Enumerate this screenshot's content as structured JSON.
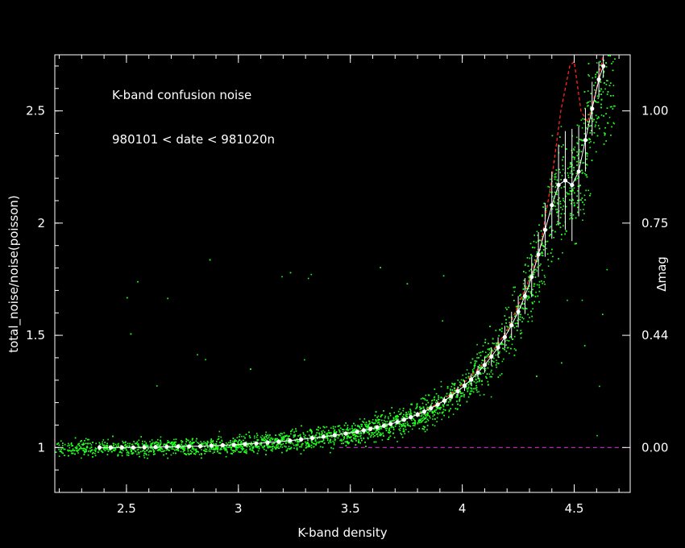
{
  "chart_data": {
    "type": "scatter",
    "title": "K-band confusion noise",
    "subtitle": "980101 < date < 981020n",
    "xlabel": "K-band density",
    "ylabel": "total_noise/noise(poisson)",
    "y2label": "Δmag",
    "xlim": [
      2.18,
      4.75
    ],
    "ylim": [
      0.8,
      2.75
    ],
    "x_ticks": [
      "2.5",
      "3",
      "3.5",
      "4",
      "4.5"
    ],
    "x_tick_values": [
      2.5,
      3.0,
      3.5,
      4.0,
      4.5
    ],
    "y_ticks": [
      "1",
      "1.5",
      "2",
      "2.5"
    ],
    "y_tick_values": [
      1.0,
      1.5,
      2.0,
      2.5
    ],
    "y2_ticks": [
      "0.00",
      "0.44",
      "0.75",
      "1.00"
    ],
    "y2_tick_values": [
      1.0,
      1.5,
      2.0,
      2.5
    ],
    "reference_line_y": 1.0,
    "colors": {
      "scatter": "#22ff22",
      "binned": "#ffffff",
      "model": "#ff2222",
      "reference": "#cc33cc",
      "axes": "#ffffff"
    },
    "series": [
      {
        "kind": "binned-mean-with-errorbars",
        "x": [
          2.38,
          2.43,
          2.48,
          2.53,
          2.58,
          2.63,
          2.68,
          2.73,
          2.78,
          2.83,
          2.88,
          2.93,
          2.98,
          3.03,
          3.08,
          3.13,
          3.18,
          3.23,
          3.28,
          3.33,
          3.38,
          3.43,
          3.48,
          3.53,
          3.56,
          3.59,
          3.62,
          3.65,
          3.68,
          3.71,
          3.74,
          3.77,
          3.8,
          3.83,
          3.86,
          3.89,
          3.92,
          3.95,
          3.98,
          4.01,
          4.04,
          4.07,
          4.1,
          4.13,
          4.16,
          4.19,
          4.22,
          4.25,
          4.28,
          4.31,
          4.34,
          4.37,
          4.4,
          4.43,
          4.46,
          4.49,
          4.52,
          4.55,
          4.58,
          4.61,
          4.63
        ],
        "y": [
          1.0,
          1.0,
          1.0,
          1.0,
          1.001,
          1.002,
          1.003,
          1.004,
          1.005,
          1.006,
          1.008,
          1.01,
          1.012,
          1.015,
          1.018,
          1.022,
          1.026,
          1.031,
          1.036,
          1.042,
          1.048,
          1.055,
          1.062,
          1.07,
          1.076,
          1.083,
          1.09,
          1.097,
          1.105,
          1.114,
          1.124,
          1.135,
          1.147,
          1.16,
          1.175,
          1.191,
          1.209,
          1.229,
          1.251,
          1.276,
          1.303,
          1.334,
          1.368,
          1.405,
          1.446,
          1.492,
          1.545,
          1.605,
          1.675,
          1.76,
          1.86,
          1.97,
          2.08,
          2.17,
          2.19,
          2.17,
          2.23,
          2.37,
          2.51,
          2.64,
          2.7
        ],
        "err": [
          0.01,
          0.01,
          0.01,
          0.01,
          0.01,
          0.01,
          0.01,
          0.01,
          0.01,
          0.01,
          0.01,
          0.01,
          0.01,
          0.01,
          0.01,
          0.01,
          0.01,
          0.01,
          0.01,
          0.01,
          0.01,
          0.01,
          0.01,
          0.01,
          0.01,
          0.01,
          0.01,
          0.01,
          0.01,
          0.01,
          0.01,
          0.01,
          0.012,
          0.012,
          0.014,
          0.015,
          0.017,
          0.019,
          0.021,
          0.024,
          0.027,
          0.03,
          0.035,
          0.04,
          0.045,
          0.05,
          0.06,
          0.07,
          0.08,
          0.09,
          0.1,
          0.12,
          0.15,
          0.18,
          0.22,
          0.25,
          0.2,
          0.14,
          0.12,
          0.08,
          0.05
        ]
      },
      {
        "kind": "model-curve",
        "x": [
          3.8,
          3.9,
          4.0,
          4.1,
          4.2,
          4.3,
          4.35,
          4.4,
          4.44,
          4.48,
          4.5,
          4.53,
          4.56,
          4.6,
          4.63
        ],
        "y": [
          1.15,
          1.2,
          1.28,
          1.38,
          1.52,
          1.75,
          1.9,
          2.2,
          2.5,
          2.7,
          2.72,
          2.5,
          2.45,
          2.6,
          2.75
        ]
      }
    ]
  }
}
